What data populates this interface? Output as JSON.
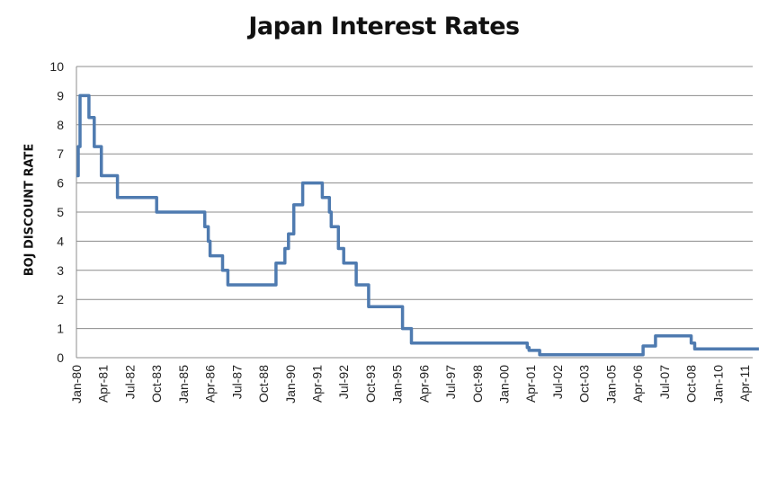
{
  "chart_data": {
    "type": "line",
    "title": "Japan Interest Rates",
    "xlabel": "",
    "ylabel": "BOJ DISCOUNT RATE",
    "ylim": [
      0,
      10
    ],
    "yticks": [
      0,
      1,
      2,
      3,
      4,
      5,
      6,
      7,
      8,
      9,
      10
    ],
    "grid": true,
    "legend": "none",
    "line_color": "#4F7BB0",
    "x_tick_labels": [
      "Jan-80",
      "Apr-81",
      "Jul-82",
      "Oct-83",
      "Jan-85",
      "Apr-86",
      "Jul-87",
      "Oct-88",
      "Jan-90",
      "Apr-91",
      "Jul-92",
      "Oct-93",
      "Jan-95",
      "Apr-96",
      "Jul-97",
      "Oct-98",
      "Jan-00",
      "Apr-01",
      "Jul-02",
      "Oct-03",
      "Jan-05",
      "Apr-06",
      "Jul-07",
      "Oct-08",
      "Jan-10",
      "Apr-11"
    ],
    "series": [
      {
        "name": "BOJ Discount Rate",
        "points": [
          [
            "Jan-80",
            6.25
          ],
          [
            "Feb-80",
            7.25
          ],
          [
            "Mar-80",
            9.0
          ],
          [
            "Aug-80",
            8.25
          ],
          [
            "Nov-80",
            7.25
          ],
          [
            "Mar-81",
            6.25
          ],
          [
            "Dec-81",
            5.5
          ],
          [
            "Oct-83",
            5.0
          ],
          [
            "Jan-86",
            4.5
          ],
          [
            "Mar-86",
            4.0
          ],
          [
            "Apr-86",
            3.5
          ],
          [
            "Nov-86",
            3.0
          ],
          [
            "Feb-87",
            2.5
          ],
          [
            "May-89",
            3.25
          ],
          [
            "Oct-89",
            3.75
          ],
          [
            "Dec-89",
            4.25
          ],
          [
            "Mar-90",
            5.25
          ],
          [
            "Aug-90",
            6.0
          ],
          [
            "Jul-91",
            5.5
          ],
          [
            "Nov-91",
            5.0
          ],
          [
            "Dec-91",
            4.5
          ],
          [
            "Apr-92",
            3.75
          ],
          [
            "Jul-92",
            3.25
          ],
          [
            "Feb-93",
            2.5
          ],
          [
            "Sep-93",
            1.75
          ],
          [
            "Apr-95",
            1.0
          ],
          [
            "Sep-95",
            0.5
          ],
          [
            "Feb-01",
            0.35
          ],
          [
            "Mar-01",
            0.25
          ],
          [
            "Sep-01",
            0.1
          ],
          [
            "Jul-06",
            0.4
          ],
          [
            "Feb-07",
            0.75
          ],
          [
            "Oct-08",
            0.5
          ],
          [
            "Dec-08",
            0.3
          ],
          [
            "Dec-11",
            0.3
          ]
        ]
      }
    ]
  }
}
